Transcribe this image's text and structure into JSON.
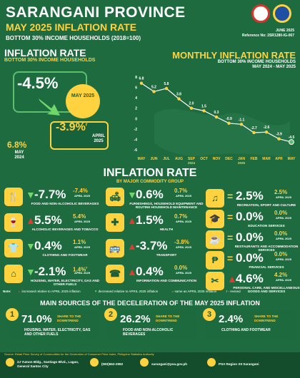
{
  "header": {
    "title": "SARANGANI PROVINCE",
    "subtitle": "MAY 2025 INFLATION RATE",
    "group": "BOTTOM 30% INCOME HOUSEHOLDS (2018=100)",
    "date": "JUNE 2025",
    "reference": "Reference No: 2SR1280-IG-067"
  },
  "left_panel": {
    "heading": "INFLATION RATE",
    "subheading": "BOTTOM 30% INCOME HOUSEHOLDS",
    "may2025_value": "-4.5%",
    "may2025_label": "MAY 2025",
    "apr2025_value": "-3.9%",
    "apr2025_sup": "r",
    "apr2025_label": "APRIL 2025",
    "may2024_value": "6.8%",
    "may2024_label": "MAY 2024"
  },
  "right_panel": {
    "heading": "MONTHLY INFLATION RATE",
    "subheading": "BOTTOM 30% INCOME HOUSEHOLDS",
    "period": "MAY 2024 - MAY 2025"
  },
  "chart_data": {
    "type": "line",
    "categories": [
      "MAY",
      "JUN",
      "JUL",
      "AUG",
      "SEP",
      "OCT",
      "NOV",
      "DEC",
      "JAN",
      "FEB",
      "MAR",
      "APR",
      "MAY"
    ],
    "x_sublabels": [
      "",
      "",
      "",
      "",
      "2024",
      "",
      "",
      "",
      "2025",
      "",
      "",
      "",
      ""
    ],
    "values": [
      6.8,
      5.2,
      5.8,
      3.8,
      2.0,
      1.5,
      0.3,
      -0.9,
      -1.1,
      -2.7,
      -2.6,
      -3.9,
      -4.5
    ],
    "labels": [
      "6.8",
      "5.2",
      "5.8",
      "3.8",
      "2.0",
      "1.5",
      "0.3",
      "-0.9",
      "-1.1",
      "-2.7",
      "-2.6",
      "-3.9",
      "-4.5"
    ],
    "yticks": [
      8,
      6,
      4,
      2,
      0,
      -2,
      -4,
      -6
    ],
    "ylim": [
      -6,
      8
    ],
    "grid": false,
    "colors": {
      "line": "#ffffff",
      "point": "#ffd23f",
      "last_point": "#5cbf6b"
    }
  },
  "commodity": {
    "heading": "INFLATION RATE",
    "subheading": "BY MAJOR COMMODITY GROUP",
    "items": [
      {
        "icon": "food-icon",
        "glyph": "🍴",
        "dir": "down",
        "value": "-7.7%",
        "prev": "-7.4%",
        "prev_label": "APRIL 2025",
        "label": "FOOD AND NON-ALCOHOLIC BEVERAGES"
      },
      {
        "icon": "alcohol-icon",
        "glyph": "🍷",
        "dir": "up",
        "value": "5.5%",
        "prev": "5.4%",
        "prev_label": "APRIL 2025",
        "label": "ALCOHOLIC BEVERAGES AND TOBACCO"
      },
      {
        "icon": "clothing-icon",
        "glyph": "👕",
        "dir": "down",
        "value": "0.4%",
        "prev": "1.1%",
        "prev_label": "APRIL 2025",
        "label": "CLOTHING AND FOOTWEAR"
      },
      {
        "icon": "housing-icon",
        "glyph": "⌂",
        "dir": "down",
        "value": "-2.1%",
        "prev": "1.4%",
        "prev_sup": "r",
        "prev_label": "APRIL 2025",
        "label": "HOUSING, WATER, ELECTRICITY, GAS AND OTHER FUELS"
      },
      {
        "icon": "furnishing-icon",
        "glyph": "🛋",
        "dir": "down",
        "value": "0.6%",
        "prev": "0.7%",
        "prev_label": "APRIL 2025",
        "label": "FURNISHINGS, HOUSEHOLD EQUIPMENT AND ROUTINE HOUSEHOLD MAINTENANCE"
      },
      {
        "icon": "health-icon",
        "glyph": "✚",
        "dir": "up",
        "value": "1.5%",
        "prev": "0.7%",
        "prev_label": "APRIL 2025",
        "label": "HEALTH"
      },
      {
        "icon": "transport-icon",
        "glyph": "🚌",
        "dir": "up",
        "value": "-3.7%",
        "prev": "-3.8%",
        "prev_label": "APRIL 2025",
        "label": "TRANSPORT"
      },
      {
        "icon": "communication-icon",
        "glyph": "☎",
        "dir": "up",
        "value": "0.4%",
        "prev": "0.0%",
        "prev_label": "APRIL 2025",
        "label": "INFORMATION AND COMMUNICATION"
      },
      {
        "icon": "recreation-icon",
        "glyph": "♫",
        "dir": "eq",
        "value": "2.5%",
        "prev": "2.5%",
        "prev_label": "APRIL 2025",
        "label": "RECREATION, SPORT AND CULTURE"
      },
      {
        "icon": "education-icon",
        "glyph": "🎓",
        "dir": "eq",
        "value": "0.0%",
        "prev": "0.0%",
        "prev_label": "APRIL 2025",
        "label": "EDUCATION SERVICES"
      },
      {
        "icon": "restaurant-icon",
        "glyph": "☕",
        "dir": "eq",
        "value": "0.0%",
        "prev": "0.0%",
        "prev_label": "APRIL 2025",
        "label": "RESTAURANTS AND ACCOMMODATION SERVICES"
      },
      {
        "icon": "financial-icon",
        "glyph": "₱",
        "dir": "eq",
        "value": "0.0%",
        "prev": "0.0%",
        "prev_label": "APRIL 2025",
        "label": "FINANCIAL SERVICES"
      },
      {
        "icon": "personal-care-icon",
        "glyph": "✂",
        "dir": "up",
        "value": "4.6%",
        "prev": "4.2%",
        "prev_label": "APRIL 2025",
        "label": "PERSONAL CARE, AND MISCELLANEOUS GOODS AND SERVICES"
      }
    ]
  },
  "notes": {
    "label": "Note:",
    "up": "increased relative to APRIL 2025 inflation",
    "down": "decreased relative to APRIL 2025 inflation",
    "eq": "same as APRIL 2025 inflation",
    "r": "r - revised"
  },
  "sources": {
    "heading": "MAIN SOURCES OF THE DECELERATION OF THE MAY 2025 INFLATION",
    "items": [
      {
        "num": "1",
        "value": "71.0%",
        "share": "SHARE TO THE DOWNTREND",
        "label": "HOUSING, WATER, ELECTRICITY, GAS AND OTHER FUELS"
      },
      {
        "num": "2",
        "value": "26.2%",
        "share": "SHARE TO THE DOWNTREND",
        "label": "FOOD AND NON-ALCOHOLIC BEVERAGES"
      },
      {
        "num": "3",
        "value": "2.4%",
        "share": "SHARE TO THE DOWNTREND",
        "label": "CLOTHING AND FOOTWEAR"
      }
    ]
  },
  "footer": {
    "source": "Source: Retail Price Survey of Commodities for the Generation of Consumer Price Index, Philippine Statistics Authority",
    "address": "2J Yumon Bldg., Santiago Blvd., Lagao, General Santos City",
    "phone": "(083)552-2992",
    "email": "sarangani@psa.gov.ph",
    "facebook": "PSA Region XII Sarangani"
  }
}
